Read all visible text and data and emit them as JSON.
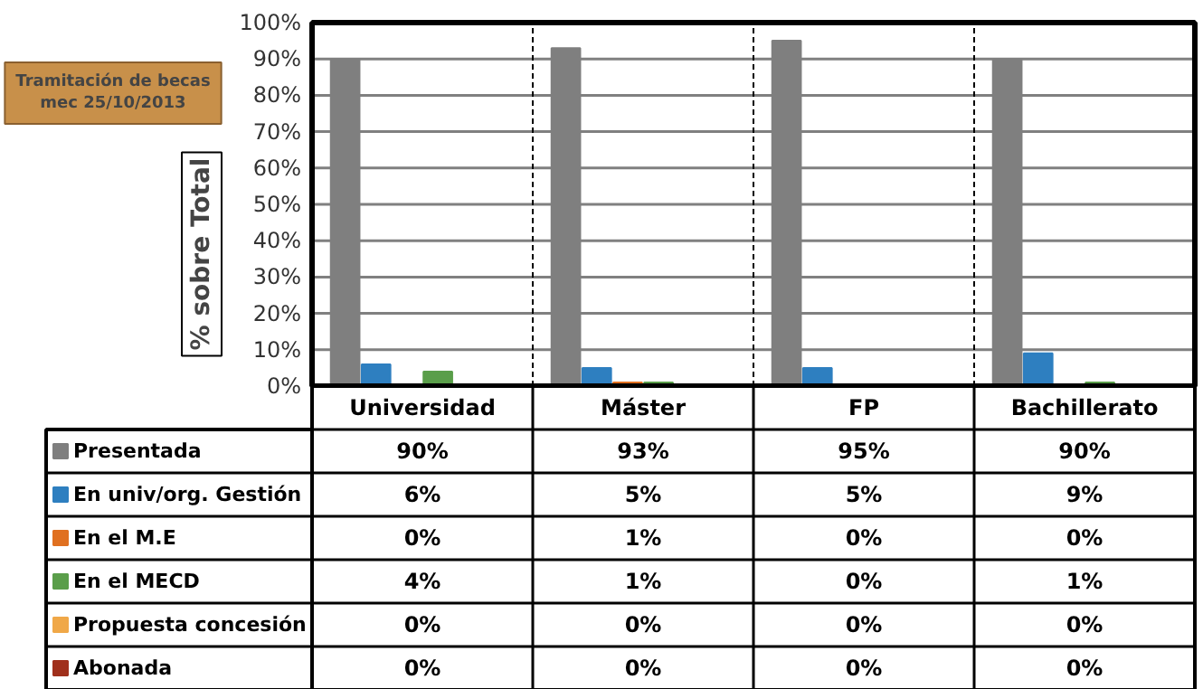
{
  "chart_data": {
    "type": "bar",
    "title": "Tramitación de becas mec 25/10/2013",
    "ylabel": "% sobre Total",
    "categories": [
      "Universidad",
      "Máster",
      "FP",
      "Bachillerato"
    ],
    "series": [
      {
        "name": "Presentada",
        "color": "#7f7f7f",
        "values": [
          90,
          93,
          95,
          90
        ],
        "value_labels": [
          "90%",
          "93%",
          "95%",
          "90%"
        ]
      },
      {
        "name": "En univ/org. Gestión",
        "color": "#2e7fc0",
        "values": [
          6,
          5,
          5,
          9
        ],
        "value_labels": [
          "6%",
          "5%",
          "5%",
          "9%"
        ]
      },
      {
        "name": "En el M.E",
        "color": "#e07020",
        "values": [
          0,
          1,
          0,
          0
        ],
        "value_labels": [
          "0%",
          "1%",
          "0%",
          "0%"
        ]
      },
      {
        "name": "En el MECD",
        "color": "#5a9e4a",
        "values": [
          4,
          1,
          0,
          1
        ],
        "value_labels": [
          "4%",
          "1%",
          "0%",
          "1%"
        ]
      },
      {
        "name": "Propuesta concesión",
        "color": "#f0a848",
        "values": [
          0,
          0,
          0,
          0
        ],
        "value_labels": [
          "0%",
          "0%",
          "0%",
          "0%"
        ]
      },
      {
        "name": "Abonada",
        "color": "#a0301c",
        "values": [
          0,
          0,
          0,
          0
        ],
        "value_labels": [
          "0%",
          "0%",
          "0%",
          "0%"
        ]
      }
    ],
    "ylim": [
      0,
      100
    ],
    "yticks": [
      {
        "value": 0,
        "label": "0%"
      },
      {
        "value": 10,
        "label": "10%"
      },
      {
        "value": 20,
        "label": "20%"
      },
      {
        "value": 30,
        "label": "30%"
      },
      {
        "value": 40,
        "label": "40%"
      },
      {
        "value": 50,
        "label": "50%"
      },
      {
        "value": 60,
        "label": "60%"
      },
      {
        "value": 70,
        "label": "70%"
      },
      {
        "value": 80,
        "label": "80%"
      },
      {
        "value": 90,
        "label": "90%"
      },
      {
        "value": 100,
        "label": "100%"
      }
    ],
    "grid": "y",
    "legend": "bottom"
  }
}
